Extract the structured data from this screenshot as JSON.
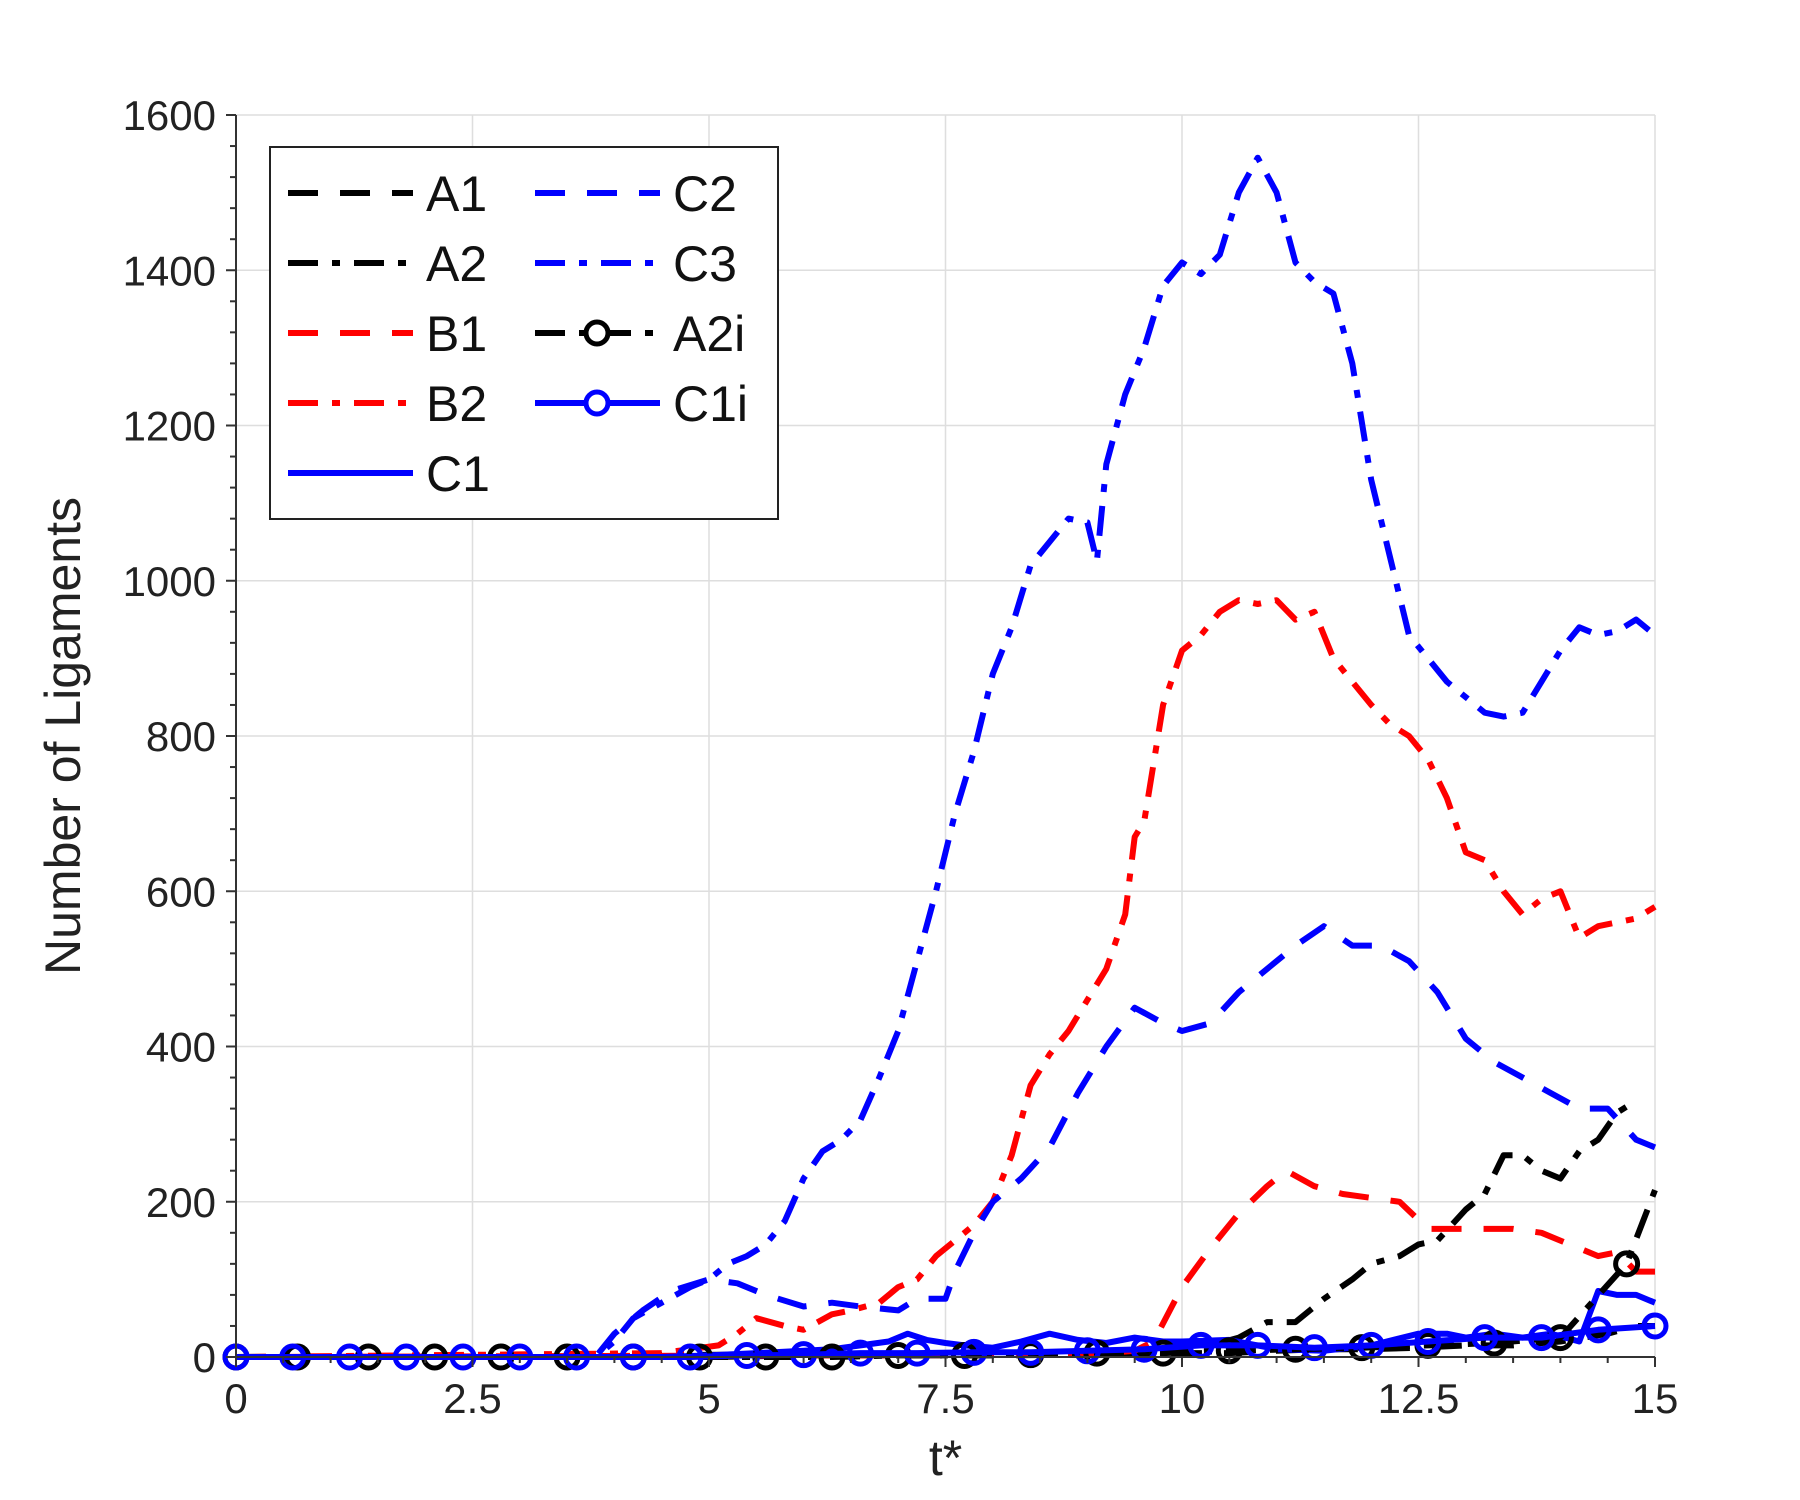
{
  "chart_data": {
    "type": "line",
    "title": "",
    "xlabel": "t*",
    "ylabel": "Number of Ligaments",
    "xlim": [
      0,
      15
    ],
    "ylim": [
      0,
      1600
    ],
    "xticks": [
      0,
      2.5,
      5,
      7.5,
      10,
      12.5,
      15
    ],
    "xtick_labels": [
      "0",
      "2.5",
      "5",
      "7.5",
      "10",
      "12.5",
      "15"
    ],
    "yticks": [
      0,
      200,
      400,
      600,
      800,
      1000,
      1200,
      1400,
      1600
    ],
    "ytick_labels": [
      "0",
      "200",
      "400",
      "600",
      "800",
      "1000",
      "1200",
      "1400",
      "1600"
    ],
    "grid": true,
    "legend_placement": "top-left",
    "series": [
      {
        "name": "A1",
        "color": "#000000",
        "dash": "dashed",
        "marker": "none",
        "x": [
          0,
          4.0,
          5.0,
          6.0,
          7.0,
          8.0,
          9.0,
          9.5,
          10.0,
          10.5,
          11.0,
          11.5,
          12.0,
          12.5,
          13.0,
          13.5,
          14.0,
          14.5,
          14.8,
          15.0
        ],
        "y": [
          0,
          0,
          0,
          2,
          2,
          2,
          3,
          3,
          5,
          5,
          8,
          10,
          10,
          12,
          15,
          15,
          20,
          30,
          40,
          40
        ]
      },
      {
        "name": "A2",
        "color": "#000000",
        "dash": "dashdot",
        "marker": "none",
        "x": [
          0,
          9.0,
          9.5,
          10.0,
          10.3,
          10.6,
          10.9,
          11.2,
          11.5,
          11.8,
          12.0,
          12.3,
          12.5,
          12.7,
          13.0,
          13.2,
          13.4,
          13.6,
          13.8,
          14.0,
          14.2,
          14.4,
          14.6,
          14.8
        ],
        "y": [
          0,
          5,
          8,
          12,
          15,
          25,
          45,
          45,
          75,
          100,
          120,
          130,
          145,
          150,
          190,
          210,
          260,
          260,
          240,
          230,
          265,
          280,
          315,
          330
        ]
      },
      {
        "name": "B1",
        "color": "#ff0000",
        "dash": "dashed",
        "marker": "none",
        "x": [
          0,
          9.0,
          9.5,
          9.7,
          10.0,
          10.3,
          10.6,
          10.9,
          11.1,
          11.4,
          11.7,
          12.0,
          12.3,
          12.6,
          12.9,
          13.2,
          13.5,
          13.8,
          14.0,
          14.2,
          14.4,
          14.6,
          14.8,
          15.0
        ],
        "y": [
          0,
          3,
          8,
          20,
          90,
          140,
          185,
          220,
          240,
          220,
          210,
          205,
          200,
          165,
          165,
          165,
          165,
          160,
          150,
          140,
          130,
          135,
          110,
          110
        ]
      },
      {
        "name": "B2",
        "color": "#ff0000",
        "dash": "dashdot",
        "marker": "none",
        "x": [
          0,
          4.5,
          4.8,
          5.1,
          5.3,
          5.5,
          5.8,
          6.0,
          6.3,
          6.5,
          6.8,
          7.0,
          7.2,
          7.4,
          7.6,
          7.8,
          8.0,
          8.2,
          8.4,
          8.6,
          8.8,
          9.0,
          9.2,
          9.4,
          9.5,
          9.6,
          9.8,
          10.0,
          10.2,
          10.4,
          10.6,
          10.8,
          11.0,
          11.2,
          11.4,
          11.6,
          11.8,
          12.0,
          12.2,
          12.4,
          12.6,
          12.8,
          13.0,
          13.2,
          13.4,
          13.6,
          13.8,
          14.0,
          14.2,
          14.4,
          14.6,
          14.8,
          15.0
        ],
        "y": [
          0,
          5,
          10,
          15,
          30,
          50,
          40,
          35,
          55,
          60,
          70,
          90,
          100,
          130,
          150,
          170,
          200,
          260,
          350,
          390,
          420,
          460,
          500,
          570,
          670,
          690,
          840,
          910,
          930,
          960,
          975,
          970,
          975,
          950,
          960,
          900,
          870,
          840,
          815,
          800,
          770,
          720,
          650,
          640,
          600,
          570,
          590,
          600,
          540,
          555,
          560,
          565,
          580
        ]
      },
      {
        "name": "C1",
        "color": "#0000ff",
        "dash": "solid",
        "marker": "none",
        "x": [
          0,
          4.5,
          5.0,
          5.5,
          6.0,
          6.3,
          6.6,
          6.9,
          7.1,
          7.3,
          7.5,
          7.7,
          8.0,
          8.3,
          8.6,
          8.9,
          9.2,
          9.5,
          9.8,
          10.0,
          10.5,
          11.0,
          11.5,
          12.0,
          12.5,
          12.8,
          13.0,
          13.3,
          13.6,
          13.9,
          14.2,
          14.4,
          14.6,
          14.8,
          15.0
        ],
        "y": [
          0,
          0,
          2,
          5,
          8,
          10,
          15,
          20,
          30,
          22,
          18,
          15,
          12,
          20,
          30,
          22,
          18,
          25,
          20,
          20,
          22,
          10,
          8,
          15,
          30,
          30,
          25,
          30,
          25,
          30,
          20,
          85,
          80,
          80,
          70
        ]
      },
      {
        "name": "C2",
        "color": "#0000ff",
        "dash": "dashed",
        "marker": "none",
        "x": [
          0,
          3.8,
          4.0,
          4.3,
          4.6,
          5.0,
          5.3,
          5.6,
          6.0,
          6.3,
          6.6,
          7.0,
          7.2,
          7.5,
          7.6,
          7.8,
          8.0,
          8.3,
          8.6,
          8.9,
          9.2,
          9.5,
          9.8,
          10.0,
          10.3,
          10.6,
          10.9,
          11.2,
          11.5,
          11.8,
          12.1,
          12.4,
          12.7,
          13.0,
          13.3,
          13.6,
          13.9,
          14.2,
          14.5,
          14.8,
          15.0
        ],
        "y": [
          0,
          0,
          30,
          60,
          85,
          100,
          95,
          80,
          65,
          70,
          65,
          60,
          75,
          75,
          110,
          160,
          200,
          230,
          270,
          340,
          400,
          450,
          430,
          420,
          430,
          470,
          500,
          530,
          555,
          530,
          530,
          510,
          470,
          410,
          380,
          360,
          340,
          320,
          320,
          280,
          270
        ]
      },
      {
        "name": "C3",
        "color": "#0000ff",
        "dash": "dashdot",
        "marker": "none",
        "x": [
          0,
          3.8,
          4.0,
          4.2,
          4.5,
          4.8,
          5.0,
          5.2,
          5.4,
          5.6,
          5.8,
          6.0,
          6.2,
          6.4,
          6.6,
          6.8,
          7.0,
          7.2,
          7.4,
          7.6,
          7.8,
          8.0,
          8.2,
          8.4,
          8.6,
          8.8,
          9.0,
          9.1,
          9.2,
          9.4,
          9.6,
          9.8,
          10.0,
          10.2,
          10.4,
          10.6,
          10.8,
          11.0,
          11.2,
          11.4,
          11.6,
          11.8,
          12.0,
          12.2,
          12.4,
          12.6,
          12.8,
          13.0,
          13.2,
          13.4,
          13.6,
          13.8,
          14.0,
          14.2,
          14.4,
          14.6,
          14.8,
          15.0
        ],
        "y": [
          0,
          0,
          20,
          50,
          70,
          90,
          100,
          120,
          130,
          145,
          175,
          230,
          265,
          280,
          305,
          360,
          420,
          510,
          600,
          700,
          780,
          880,
          940,
          1020,
          1050,
          1080,
          1075,
          1025,
          1150,
          1240,
          1300,
          1380,
          1410,
          1395,
          1420,
          1500,
          1545,
          1500,
          1410,
          1385,
          1370,
          1280,
          1130,
          1030,
          930,
          900,
          870,
          850,
          830,
          825,
          830,
          870,
          910,
          940,
          930,
          935,
          950,
          930
        ]
      },
      {
        "name": "A2i",
        "color": "#000000",
        "dash": "dashdot",
        "marker": "circle",
        "x": [
          0,
          0.7,
          1.4,
          2.1,
          2.8,
          3.5,
          4.2,
          4.9,
          5.6,
          6.3,
          7.0,
          7.7,
          8.4,
          9.1,
          9.8,
          10.5,
          11.2,
          11.9,
          12.6,
          13.3,
          14.0,
          14.7,
          15.0
        ],
        "y": [
          0,
          0,
          0,
          0,
          0,
          0,
          0,
          0,
          0,
          0,
          2,
          2,
          3,
          5,
          5,
          8,
          10,
          12,
          15,
          18,
          25,
          120,
          215
        ],
        "marker_x": [
          0,
          0.65,
          1.4,
          2.1,
          2.8,
          3.5,
          4.2,
          4.9,
          5.6,
          6.3,
          7.0,
          7.7,
          8.4,
          9.1,
          9.8,
          10.5,
          11.2,
          11.9,
          12.6,
          13.3,
          14.0,
          14.7
        ],
        "marker_y": [
          0,
          0,
          0,
          0,
          0,
          0,
          0,
          0,
          0,
          0,
          2,
          2,
          3,
          5,
          5,
          8,
          10,
          12,
          15,
          18,
          25,
          120
        ]
      },
      {
        "name": "C1i",
        "color": "#0000ff",
        "dash": "solid",
        "marker": "circle",
        "x": [
          0,
          0.6,
          1.2,
          1.8,
          2.4,
          3.0,
          3.6,
          4.2,
          4.8,
          5.4,
          6.0,
          6.6,
          7.2,
          7.8,
          8.4,
          9.0,
          9.6,
          10.2,
          10.8,
          11.4,
          12.0,
          12.6,
          13.2,
          13.8,
          14.4,
          15.0
        ],
        "y": [
          0,
          0,
          0,
          0,
          0,
          0,
          0,
          0,
          0,
          2,
          3,
          5,
          5,
          6,
          6,
          8,
          10,
          15,
          15,
          12,
          15,
          20,
          25,
          25,
          35,
          40
        ],
        "marker_x": [
          0,
          0.6,
          1.2,
          1.8,
          2.4,
          3.0,
          3.6,
          4.2,
          4.8,
          5.4,
          6.0,
          6.6,
          7.2,
          7.8,
          8.4,
          9.0,
          9.6,
          10.2,
          10.8,
          11.4,
          12.0,
          12.6,
          13.2,
          13.8,
          14.4,
          15.0
        ],
        "marker_y": [
          0,
          0,
          0,
          0,
          0,
          0,
          0,
          0,
          0,
          2,
          3,
          5,
          5,
          6,
          6,
          8,
          10,
          15,
          15,
          12,
          15,
          20,
          25,
          25,
          35,
          40
        ]
      }
    ],
    "legend_entries": [
      "A1",
      "A2",
      "B1",
      "B2",
      "C1",
      "C2",
      "C3",
      "A2i",
      "C1i"
    ]
  }
}
